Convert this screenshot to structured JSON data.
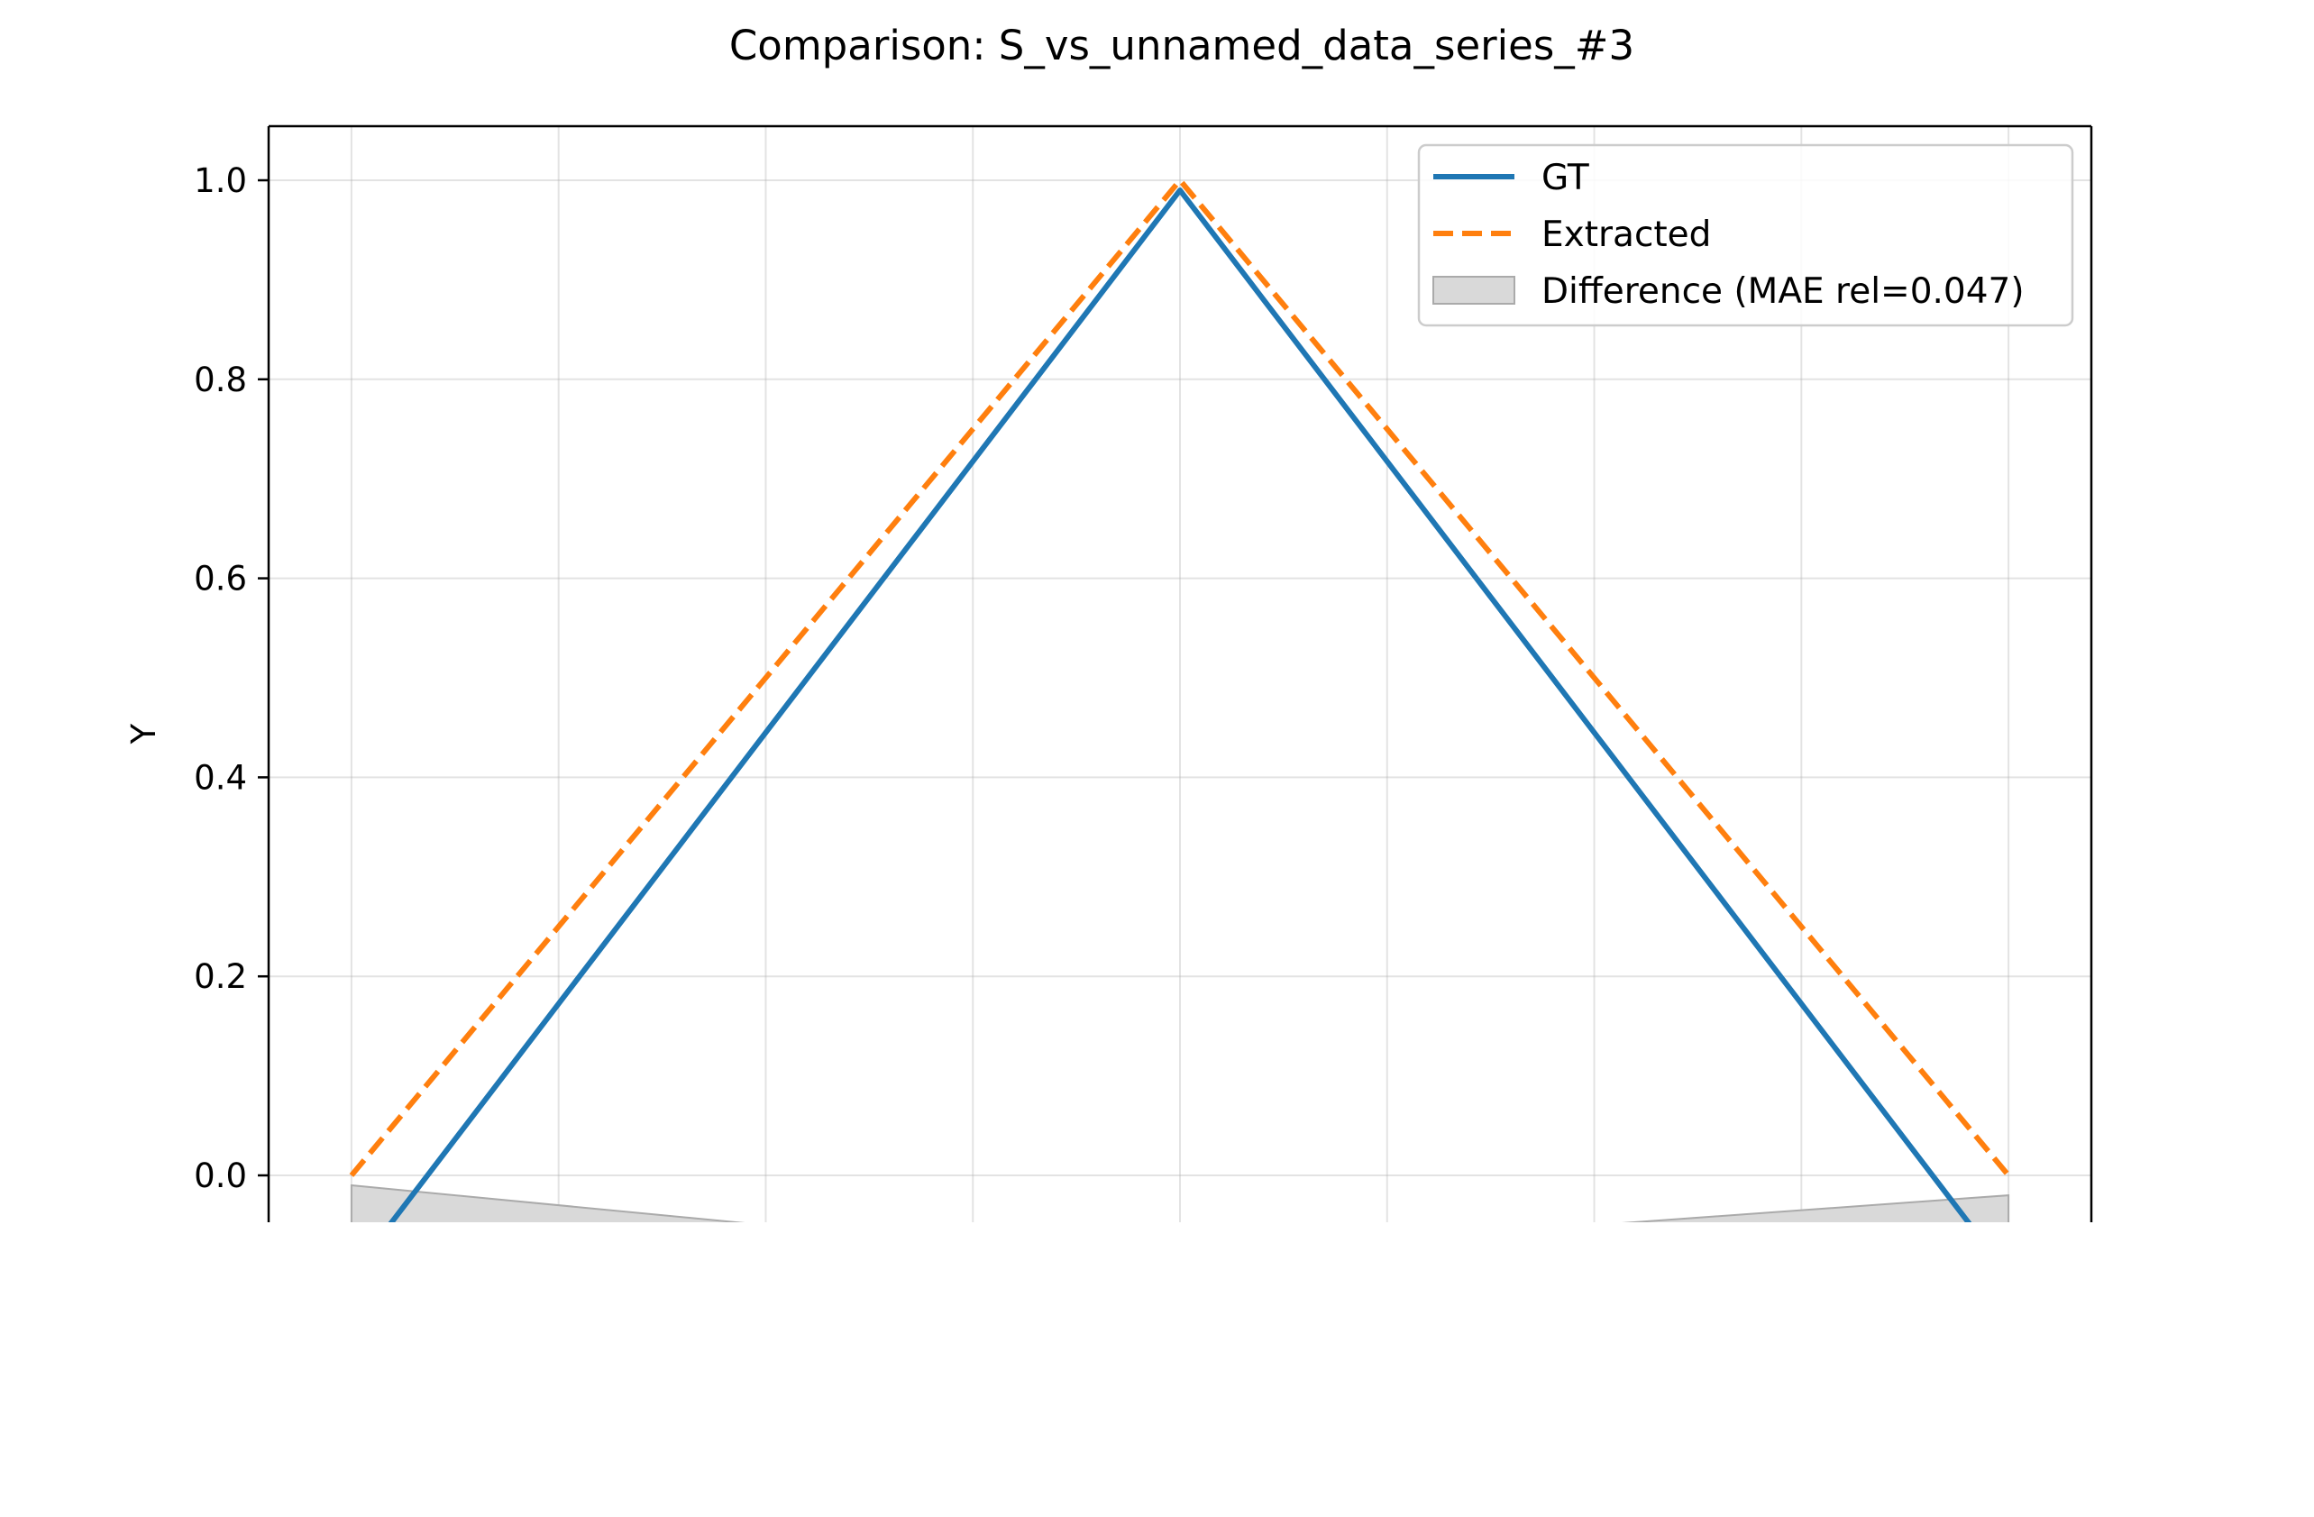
{
  "chart_data": {
    "type": "line",
    "title": "Comparison: S_vs_unnamed_data_series_#3",
    "xlabel": "",
    "ylabel": "Y",
    "ylim": [
      -0.045,
      1.055
    ],
    "xlim": [
      -0.2,
      4.2
    ],
    "yticks": [
      0.0,
      0.2,
      0.4,
      0.6,
      0.8,
      1.0
    ],
    "ytick_labels": [
      "0.0",
      "0.2",
      "0.4",
      "0.6",
      "0.8",
      "1.0"
    ],
    "xgrid": [
      0,
      0.5,
      1,
      1.5,
      2,
      2.5,
      3,
      3.5,
      4
    ],
    "grid": true,
    "legend_position": "top-right",
    "series": [
      {
        "name": "GT",
        "color": "#1f77b4",
        "style": "solid",
        "x": [
          0,
          2,
          4
        ],
        "y": [
          -0.1,
          0.99,
          -0.1
        ]
      },
      {
        "name": "Extracted",
        "color": "#ff7f0e",
        "style": "dashed",
        "x": [
          0,
          2,
          4
        ],
        "y": [
          0.0,
          1.0,
          0.0
        ]
      }
    ],
    "difference": {
      "name": "Difference (MAE rel=0.047)",
      "color": "#bfbfbf",
      "x": [
        0,
        1,
        3,
        4
      ],
      "y": [
        -0.01,
        -0.05,
        -0.05,
        -0.02
      ]
    }
  }
}
